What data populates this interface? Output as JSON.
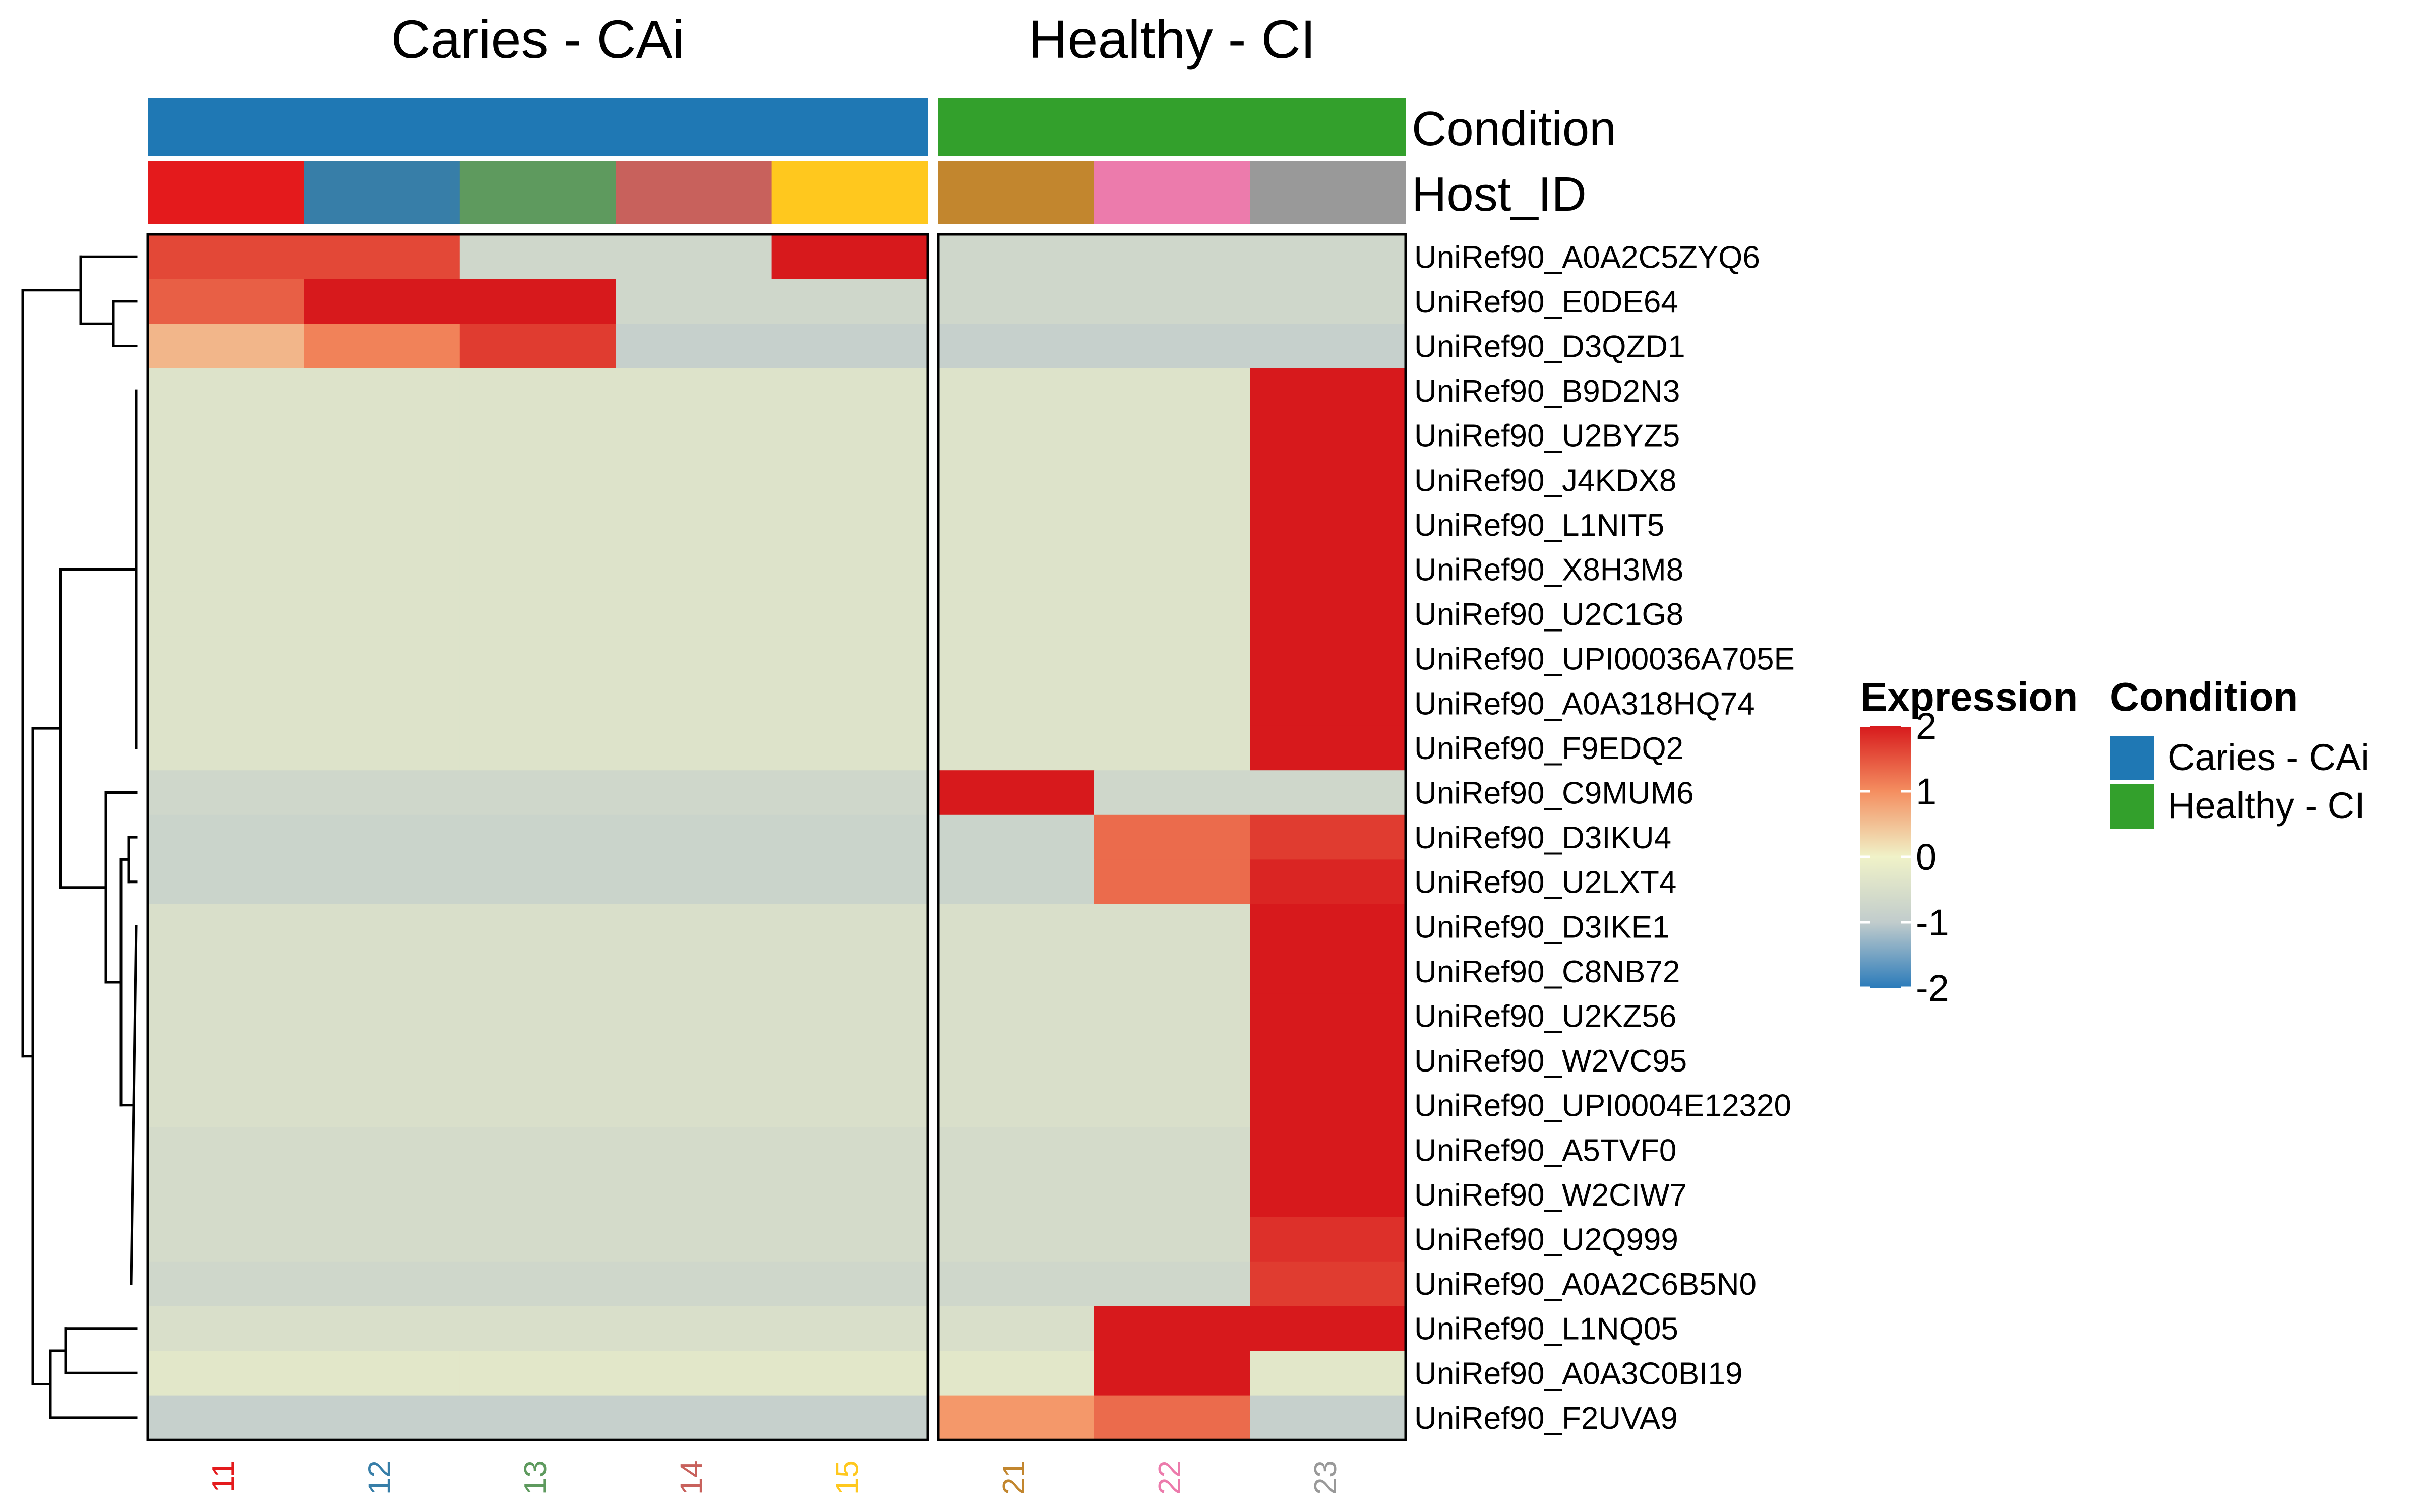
{
  "chart_data": {
    "type": "heatmap",
    "title": "",
    "column_splits": [
      "Caries - CAi",
      "Healthy - CI"
    ],
    "columns": [
      "11",
      "12",
      "13",
      "14",
      "15",
      "21",
      "22",
      "23"
    ],
    "column_split_index": [
      0,
      0,
      0,
      0,
      0,
      1,
      1,
      1
    ],
    "rows": [
      "UniRef90_A0A2C5ZYQ6",
      "UniRef90_E0DE64",
      "UniRef90_D3QZD1",
      "UniRef90_B9D2N3",
      "UniRef90_U2BYZ5",
      "UniRef90_J4KDX8",
      "UniRef90_L1NIT5",
      "UniRef90_X8H3M8",
      "UniRef90_U2C1G8",
      "UniRef90_UPI00036A705E",
      "UniRef90_A0A318HQ74",
      "UniRef90_F9EDQ2",
      "UniRef90_C9MUM6",
      "UniRef90_D3IKU4",
      "UniRef90_U2LXT4",
      "UniRef90_D3IKE1",
      "UniRef90_C8NB72",
      "UniRef90_U2KZ56",
      "UniRef90_W2VC95",
      "UniRef90_UPI0004E12320",
      "UniRef90_A5TVF0",
      "UniRef90_W2CIW7",
      "UniRef90_U2Q999",
      "UniRef90_A0A2C6B5N0",
      "UniRef90_L1NQ05",
      "UniRef90_A0A3C0BI19",
      "UniRef90_F2UVA9"
    ],
    "values": [
      [
        1.6,
        1.6,
        -0.7,
        -0.7,
        2.0,
        -0.7,
        -0.7,
        -0.7
      ],
      [
        1.4,
        2.0,
        2.0,
        -0.7,
        -0.7,
        -0.7,
        -0.7,
        -0.7
      ],
      [
        0.6,
        1.1,
        1.7,
        -0.9,
        -0.9,
        -0.9,
        -0.9,
        -0.9
      ],
      [
        -0.4,
        -0.4,
        -0.4,
        -0.4,
        -0.4,
        -0.4,
        -0.4,
        2.0
      ],
      [
        -0.4,
        -0.4,
        -0.4,
        -0.4,
        -0.4,
        -0.4,
        -0.4,
        2.0
      ],
      [
        -0.4,
        -0.4,
        -0.4,
        -0.4,
        -0.4,
        -0.4,
        -0.4,
        2.0
      ],
      [
        -0.4,
        -0.4,
        -0.4,
        -0.4,
        -0.4,
        -0.4,
        -0.4,
        2.0
      ],
      [
        -0.4,
        -0.4,
        -0.4,
        -0.4,
        -0.4,
        -0.4,
        -0.4,
        2.0
      ],
      [
        -0.4,
        -0.4,
        -0.4,
        -0.4,
        -0.4,
        -0.4,
        -0.4,
        2.0
      ],
      [
        -0.4,
        -0.4,
        -0.4,
        -0.4,
        -0.4,
        -0.4,
        -0.4,
        2.0
      ],
      [
        -0.4,
        -0.4,
        -0.4,
        -0.4,
        -0.4,
        -0.4,
        -0.4,
        2.0
      ],
      [
        -0.4,
        -0.4,
        -0.4,
        -0.4,
        -0.4,
        -0.4,
        -0.4,
        2.0
      ],
      [
        -0.7,
        -0.7,
        -0.7,
        -0.7,
        -0.7,
        2.0,
        -0.7,
        -0.7
      ],
      [
        -0.8,
        -0.8,
        -0.8,
        -0.8,
        -0.8,
        -0.8,
        1.3,
        1.7
      ],
      [
        -0.8,
        -0.8,
        -0.8,
        -0.8,
        -0.8,
        -0.8,
        1.3,
        1.9
      ],
      [
        -0.5,
        -0.5,
        -0.5,
        -0.5,
        -0.5,
        -0.5,
        -0.5,
        2.0
      ],
      [
        -0.5,
        -0.5,
        -0.5,
        -0.5,
        -0.5,
        -0.5,
        -0.5,
        2.0
      ],
      [
        -0.5,
        -0.5,
        -0.5,
        -0.5,
        -0.5,
        -0.5,
        -0.5,
        2.0
      ],
      [
        -0.5,
        -0.5,
        -0.5,
        -0.5,
        -0.5,
        -0.5,
        -0.5,
        2.0
      ],
      [
        -0.5,
        -0.5,
        -0.5,
        -0.5,
        -0.5,
        -0.5,
        -0.5,
        2.0
      ],
      [
        -0.6,
        -0.6,
        -0.6,
        -0.6,
        -0.6,
        -0.6,
        -0.6,
        2.0
      ],
      [
        -0.6,
        -0.6,
        -0.6,
        -0.6,
        -0.6,
        -0.6,
        -0.6,
        2.0
      ],
      [
        -0.6,
        -0.6,
        -0.6,
        -0.6,
        -0.6,
        -0.6,
        -0.6,
        1.8
      ],
      [
        -0.7,
        -0.7,
        -0.7,
        -0.7,
        -0.7,
        -0.7,
        -0.7,
        1.7
      ],
      [
        -0.5,
        -0.5,
        -0.5,
        -0.5,
        -0.5,
        -0.5,
        2.0,
        2.0
      ],
      [
        -0.3,
        -0.3,
        -0.3,
        -0.3,
        -0.3,
        -0.3,
        2.0,
        -0.3
      ],
      [
        -0.9,
        -0.9,
        -0.9,
        -0.9,
        -0.9,
        0.9,
        1.3,
        -0.9
      ]
    ],
    "annotations": {
      "Condition": {
        "label": "Condition",
        "per_column": [
          "Caries - CAi",
          "Caries - CAi",
          "Caries - CAi",
          "Caries - CAi",
          "Caries - CAi",
          "Healthy - CI",
          "Healthy - CI",
          "Healthy - CI"
        ],
        "colors": {
          "Caries - CAi": "#1F78B4",
          "Healthy - CI": "#33A02C"
        }
      },
      "Host_ID": {
        "label": "Host_ID",
        "colors": [
          "#E41A1C",
          "#377EA8",
          "#5E9A5E",
          "#C8615C",
          "#FFC81E",
          "#C2862E",
          "#EC7BAC",
          "#999999"
        ]
      }
    },
    "color_scale": {
      "title": "Expression",
      "ticks": [
        2,
        1,
        0,
        -1,
        -2
      ],
      "stops": [
        {
          "v": -2,
          "c": "#2B7BBA"
        },
        {
          "v": -1,
          "c": "#C1CCCC"
        },
        {
          "v": 0,
          "c": "#F0F2C8"
        },
        {
          "v": 1,
          "c": "#F48E60"
        },
        {
          "v": 2,
          "c": "#D7191C"
        }
      ]
    },
    "legend": {
      "title": "Condition",
      "items": [
        {
          "label": "Caries - CAi",
          "color": "#1F78B4"
        },
        {
          "label": "Healthy - CI",
          "color": "#33A02C"
        }
      ]
    },
    "row_dendrogram": "left"
  }
}
